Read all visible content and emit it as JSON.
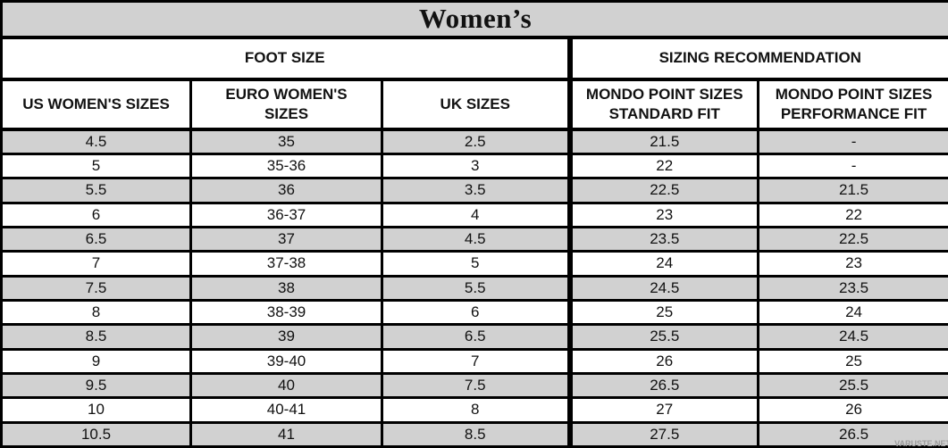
{
  "chart_data": {
    "type": "table",
    "title": "Women’s",
    "section_headers": [
      {
        "label": "FOOT SIZE",
        "colspan": 3
      },
      {
        "label": "SIZING RECOMMENDATION",
        "colspan": 2
      }
    ],
    "columns": [
      "US WOMEN'S SIZES",
      "EURO WOMEN'S\nSIZES",
      "UK SIZES",
      "MONDO POINT SIZES\nSTANDARD FIT",
      "MONDO POINT SIZES\nPERFORMANCE FIT"
    ],
    "rows": [
      [
        "4.5",
        "35",
        "2.5",
        "21.5",
        "-"
      ],
      [
        "5",
        "35-36",
        "3",
        "22",
        "-"
      ],
      [
        "5.5",
        "36",
        "3.5",
        "22.5",
        "21.5"
      ],
      [
        "6",
        "36-37",
        "4",
        "23",
        "22"
      ],
      [
        "6.5",
        "37",
        "4.5",
        "23.5",
        "22.5"
      ],
      [
        "7",
        "37-38",
        "5",
        "24",
        "23"
      ],
      [
        "7.5",
        "38",
        "5.5",
        "24.5",
        "23.5"
      ],
      [
        "8",
        "38-39",
        "6",
        "25",
        "24"
      ],
      [
        "8.5",
        "39",
        "6.5",
        "25.5",
        "24.5"
      ],
      [
        "9",
        "39-40",
        "7",
        "26",
        "25"
      ],
      [
        "9.5",
        "40",
        "7.5",
        "26.5",
        "25.5"
      ],
      [
        "10",
        "40-41",
        "8",
        "27",
        "26"
      ],
      [
        "10.5",
        "41",
        "8.5",
        "27.5",
        "26.5"
      ]
    ],
    "layout_hints": {
      "striping": "alternating shaded rows starting with the first data row",
      "thick_divider_before_column": 4
    },
    "colors": {
      "band_gray": "#d1d1d1",
      "border_black": "#000000",
      "background": "#ffffff",
      "watermark_gray": "#9b9b9b"
    }
  },
  "watermark": "VARUSTE.NET"
}
